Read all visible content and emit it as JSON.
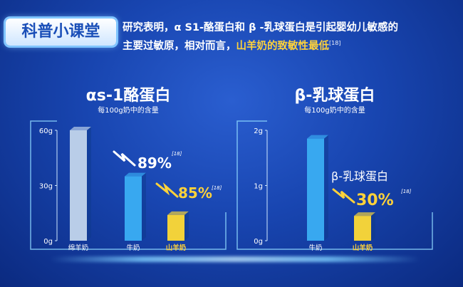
{
  "badge": "科普小课堂",
  "intro": {
    "line1": "研究表明，α S1-酪蛋白和 β -乳球蛋白是引起婴幼儿敏感的",
    "line2_plain": "主要过敏原，相对而言，",
    "line2_highlight": "山羊奶的致敏性最低",
    "ref": "[18]"
  },
  "colors": {
    "accent": "#ffd23a",
    "cow_bar": "#38a8f0",
    "formula_bar": "#b9cde8",
    "goat_bar": "#f2d23a"
  },
  "chart_data": [
    {
      "type": "bar",
      "title": "αs-1酪蛋白",
      "subtitle": "每100g奶中的含量",
      "categories": [
        "绵羊奶",
        "牛奶",
        "山羊奶"
      ],
      "values": [
        60,
        35,
        14
      ],
      "ylim": [
        0,
        60
      ],
      "yticks": [
        "0g",
        "30g",
        "60g"
      ],
      "annotations": [
        {
          "text": "89%",
          "ref": "[18]"
        },
        {
          "text": "85%",
          "ref": "[18]"
        }
      ]
    },
    {
      "type": "bar",
      "title": "β-乳球蛋白",
      "subtitle": "每100g奶中的含量",
      "categories": [
        "牛奶",
        "山羊奶"
      ],
      "values": [
        1.85,
        0.45
      ],
      "ylim": [
        0,
        2
      ],
      "yticks": [
        "0g",
        "1g",
        "2g"
      ],
      "annotations": [
        {
          "label": "β-乳球蛋白",
          "text": "30%",
          "ref": "[18]"
        }
      ]
    }
  ]
}
